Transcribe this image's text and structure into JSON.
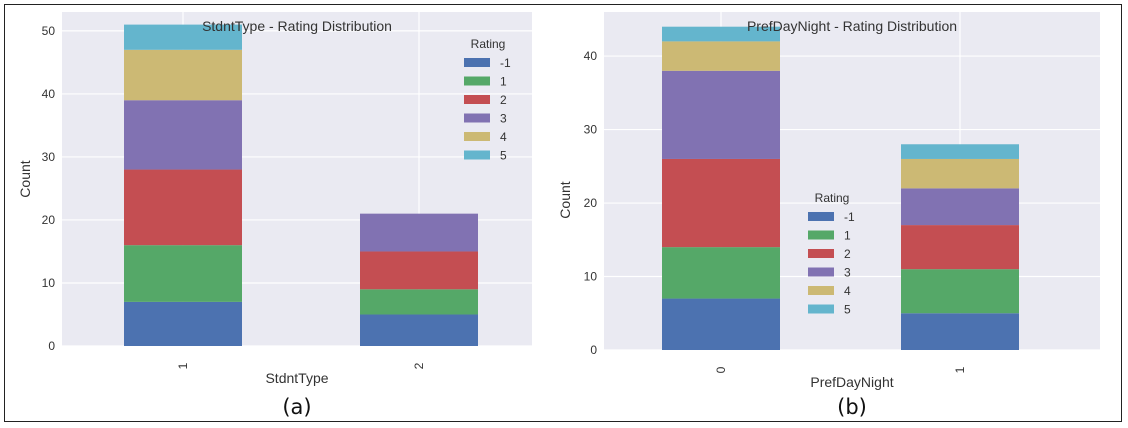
{
  "colors": {
    "-1": "#4c72b0",
    "1": "#55a868",
    "2": "#c44e52",
    "3": "#8172b2",
    "4": "#ccb974",
    "5": "#64b5cd"
  },
  "chart_data": [
    {
      "type": "bar",
      "stacked": true,
      "title": "StdntType - Rating Distribution",
      "xlabel": "StdntType",
      "ylabel": "Count",
      "categories": [
        "1",
        "2"
      ],
      "ylim": [
        0,
        53
      ],
      "yticks": [
        "0",
        "10",
        "20",
        "30",
        "40",
        "50"
      ],
      "legend_title": "Rating",
      "legend_position": "top-right",
      "grid": true,
      "series": [
        {
          "name": "-1",
          "values": [
            7,
            5
          ]
        },
        {
          "name": "1",
          "values": [
            9,
            4
          ]
        },
        {
          "name": "2",
          "values": [
            12,
            6
          ]
        },
        {
          "name": "3",
          "values": [
            11,
            6
          ]
        },
        {
          "name": "4",
          "values": [
            8,
            0
          ]
        },
        {
          "name": "5",
          "values": [
            4,
            0
          ]
        }
      ],
      "panel_label": "(a)"
    },
    {
      "type": "bar",
      "stacked": true,
      "title": "PrefDayNight - Rating Distribution",
      "xlabel": "PrefDayNight",
      "ylabel": "Count",
      "categories": [
        "0",
        "1"
      ],
      "ylim": [
        0,
        46
      ],
      "yticks": [
        "0",
        "10",
        "20",
        "30",
        "40"
      ],
      "legend_title": "Rating",
      "legend_position": "center",
      "grid": true,
      "series": [
        {
          "name": "-1",
          "values": [
            7,
            5
          ]
        },
        {
          "name": "1",
          "values": [
            7,
            6
          ]
        },
        {
          "name": "2",
          "values": [
            12,
            6
          ]
        },
        {
          "name": "3",
          "values": [
            12,
            5
          ]
        },
        {
          "name": "4",
          "values": [
            4,
            4
          ]
        },
        {
          "name": "5",
          "values": [
            2,
            2
          ]
        }
      ],
      "panel_label": "(b)"
    }
  ]
}
